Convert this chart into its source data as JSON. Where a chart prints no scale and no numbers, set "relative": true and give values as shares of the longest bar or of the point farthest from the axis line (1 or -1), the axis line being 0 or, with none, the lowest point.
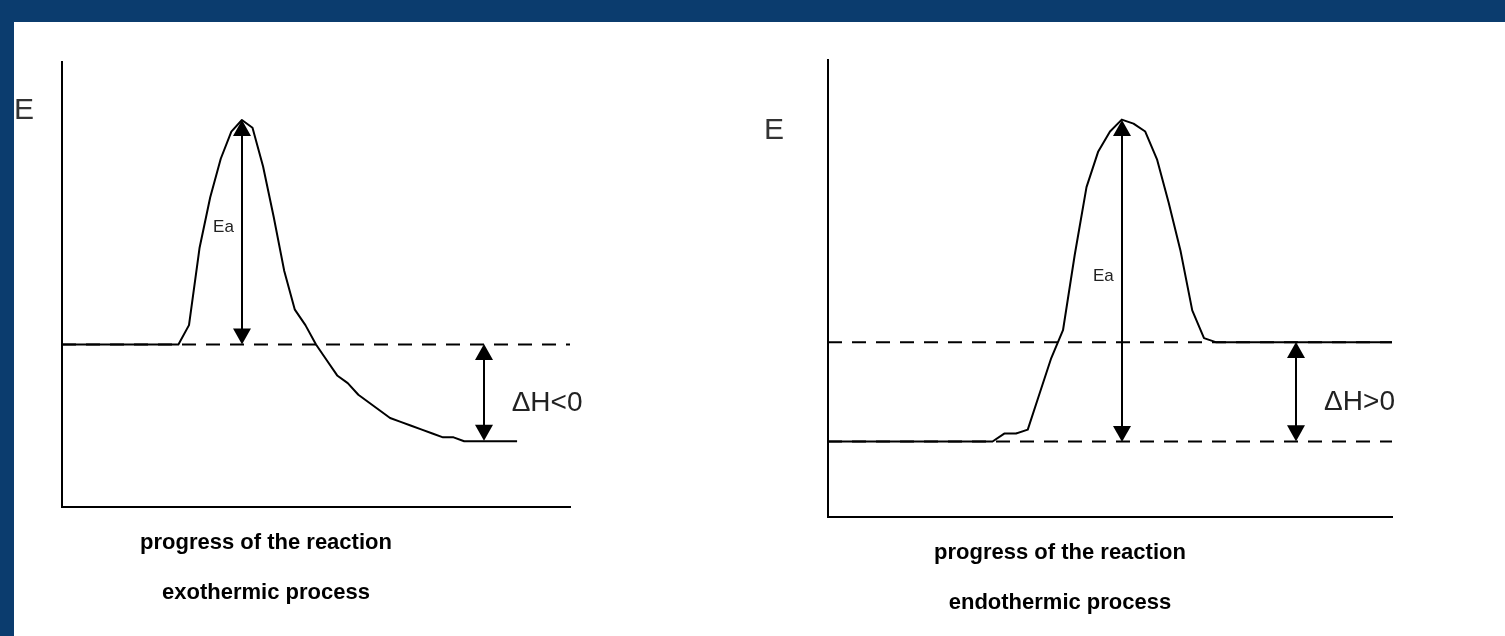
{
  "chart_data": [
    {
      "type": "line",
      "title": "exothermic process",
      "xlabel": "progress of the reaction",
      "ylabel": "E",
      "relative": true,
      "marker": "none",
      "line_style": "solid",
      "categories": [
        null,
        null,
        null,
        null,
        null,
        null,
        null,
        null,
        null,
        null,
        null,
        null,
        null,
        null,
        null,
        null,
        null,
        null,
        null,
        null,
        null,
        null,
        null,
        null,
        null,
        null,
        null,
        null,
        null,
        null,
        null,
        null,
        null,
        null,
        null,
        null,
        null,
        null,
        null,
        null,
        null,
        null,
        null,
        null,
        null,
        null,
        null,
        null,
        null
      ],
      "series": [
        {
          "color": "#000000",
          "values": [
            0.42,
            0.42,
            0.42,
            0.42,
            0.42,
            0.42,
            0.42,
            0.42,
            0.42,
            0.42,
            0.42,
            0.42,
            0.47,
            0.67,
            0.8,
            0.9,
            0.97,
            1,
            0.98,
            0.88,
            0.75,
            0.61,
            0.51,
            0.47,
            0.42,
            0.38,
            0.34,
            0.32,
            0.29,
            0.27,
            0.25,
            0.23,
            0.22,
            0.21,
            0.2,
            0.19,
            0.18,
            0.18,
            0.17,
            0.17,
            0.17,
            0.17,
            0.17,
            0.17,
            null,
            null,
            null,
            null,
            null
          ]
        }
      ],
      "ref_lines": [
        {
          "axis": "y",
          "value": 0.42,
          "line_style": "dashed",
          "color": "#000000"
        }
      ],
      "annotations": [
        "Ea",
        "ΔH<0"
      ]
    },
    {
      "type": "line",
      "title": "endothermic process",
      "xlabel": "progress of the reaction",
      "ylabel": "E",
      "relative": true,
      "marker": "none",
      "line_style": "solid",
      "categories": [
        null,
        null,
        null,
        null,
        null,
        null,
        null,
        null,
        null,
        null,
        null,
        null,
        null,
        null,
        null,
        null,
        null,
        null,
        null,
        null,
        null,
        null,
        null,
        null,
        null,
        null,
        null,
        null,
        null,
        null,
        null,
        null,
        null,
        null,
        null,
        null,
        null,
        null,
        null,
        null,
        null,
        null,
        null,
        null,
        null,
        null,
        null,
        null,
        null
      ],
      "series": [
        {
          "color": "#000000",
          "values": [
            0.19,
            0.19,
            0.19,
            0.19,
            0.19,
            0.19,
            0.19,
            0.19,
            0.19,
            0.19,
            0.19,
            0.19,
            0.19,
            0.19,
            0.19,
            0.21,
            0.21,
            0.22,
            0.31,
            0.4,
            0.47,
            0.66,
            0.83,
            0.92,
            0.97,
            1,
            0.99,
            0.97,
            0.9,
            0.79,
            0.67,
            0.52,
            0.45,
            0.44,
            0.44,
            0.44,
            0.44,
            0.44,
            0.44,
            0.44,
            0.44,
            0.44,
            0.44,
            0.44,
            0.44,
            0.44,
            0.44,
            0.44,
            0.44
          ]
        }
      ],
      "ref_lines": [
        {
          "axis": "y",
          "value": 0.19,
          "line_style": "dashed",
          "color": "#000000"
        },
        {
          "axis": "y",
          "value": 0.44,
          "line_style": "dashed",
          "color": "#000000"
        }
      ],
      "annotations": [
        "Ea",
        "ΔH>0"
      ]
    }
  ]
}
